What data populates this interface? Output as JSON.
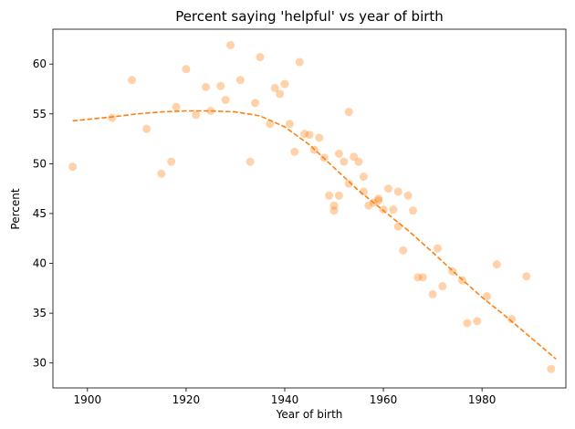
{
  "chart_data": {
    "type": "scatter",
    "title": "Percent saying 'helpful' vs year of birth",
    "xlabel": "Year of birth",
    "ylabel": "Percent",
    "xlim": [
      1893,
      1997
    ],
    "ylim": [
      27.5,
      63.5
    ],
    "xticks": [
      1900,
      1920,
      1940,
      1960,
      1980
    ],
    "yticks": [
      30,
      35,
      40,
      45,
      50,
      55,
      60
    ],
    "grid": false,
    "colors": {
      "points": "#ff7f0e",
      "trend": "#ff7f0e"
    },
    "series": [
      {
        "kind": "scatter",
        "x": [
          1897,
          1905,
          1909,
          1912,
          1915,
          1917,
          1918,
          1920,
          1922,
          1924,
          1925,
          1927,
          1928,
          1929,
          1931,
          1933,
          1934,
          1935,
          1937,
          1938,
          1939,
          1940,
          1941,
          1942,
          1943,
          1944,
          1945,
          1946,
          1947,
          1948,
          1949,
          1950,
          1950,
          1951,
          1951,
          1952,
          1953,
          1953,
          1954,
          1955,
          1956,
          1956,
          1957,
          1958,
          1959,
          1959,
          1960,
          1961,
          1962,
          1963,
          1963,
          1964,
          1965,
          1966,
          1967,
          1968,
          1970,
          1971,
          1972,
          1974,
          1976,
          1977,
          1979,
          1981,
          1983,
          1986,
          1989,
          1994
        ],
        "y": [
          49.7,
          54.6,
          58.4,
          53.5,
          49.0,
          50.2,
          55.7,
          59.5,
          54.9,
          57.7,
          55.3,
          57.8,
          56.4,
          61.9,
          58.4,
          50.2,
          56.1,
          60.7,
          54.0,
          57.6,
          57.0,
          58.0,
          54.0,
          51.2,
          60.2,
          53.0,
          52.9,
          51.4,
          52.6,
          50.6,
          46.8,
          45.8,
          45.3,
          46.8,
          51.0,
          50.2,
          48.0,
          55.2,
          50.7,
          50.2,
          47.2,
          48.7,
          45.8,
          46.1,
          46.5,
          46.3,
          45.4,
          47.5,
          45.4,
          43.7,
          47.2,
          41.3,
          46.8,
          45.3,
          38.6,
          38.6,
          36.9,
          41.5,
          37.7,
          39.2,
          38.3,
          34.0,
          34.2,
          36.7,
          39.9,
          34.4,
          38.7,
          29.4
        ]
      },
      {
        "kind": "trend",
        "style": "dashed",
        "x": [
          1897,
          1905,
          1910,
          1915,
          1920,
          1925,
          1930,
          1935,
          1940,
          1945,
          1950,
          1955,
          1960,
          1965,
          1970,
          1975,
          1980,
          1985,
          1990,
          1995
        ],
        "y": [
          54.3,
          54.7,
          55.0,
          55.2,
          55.3,
          55.3,
          55.2,
          54.8,
          53.7,
          51.9,
          49.6,
          47.3,
          45.3,
          43.3,
          41.1,
          38.8,
          36.6,
          34.6,
          32.5,
          30.4
        ]
      }
    ]
  }
}
